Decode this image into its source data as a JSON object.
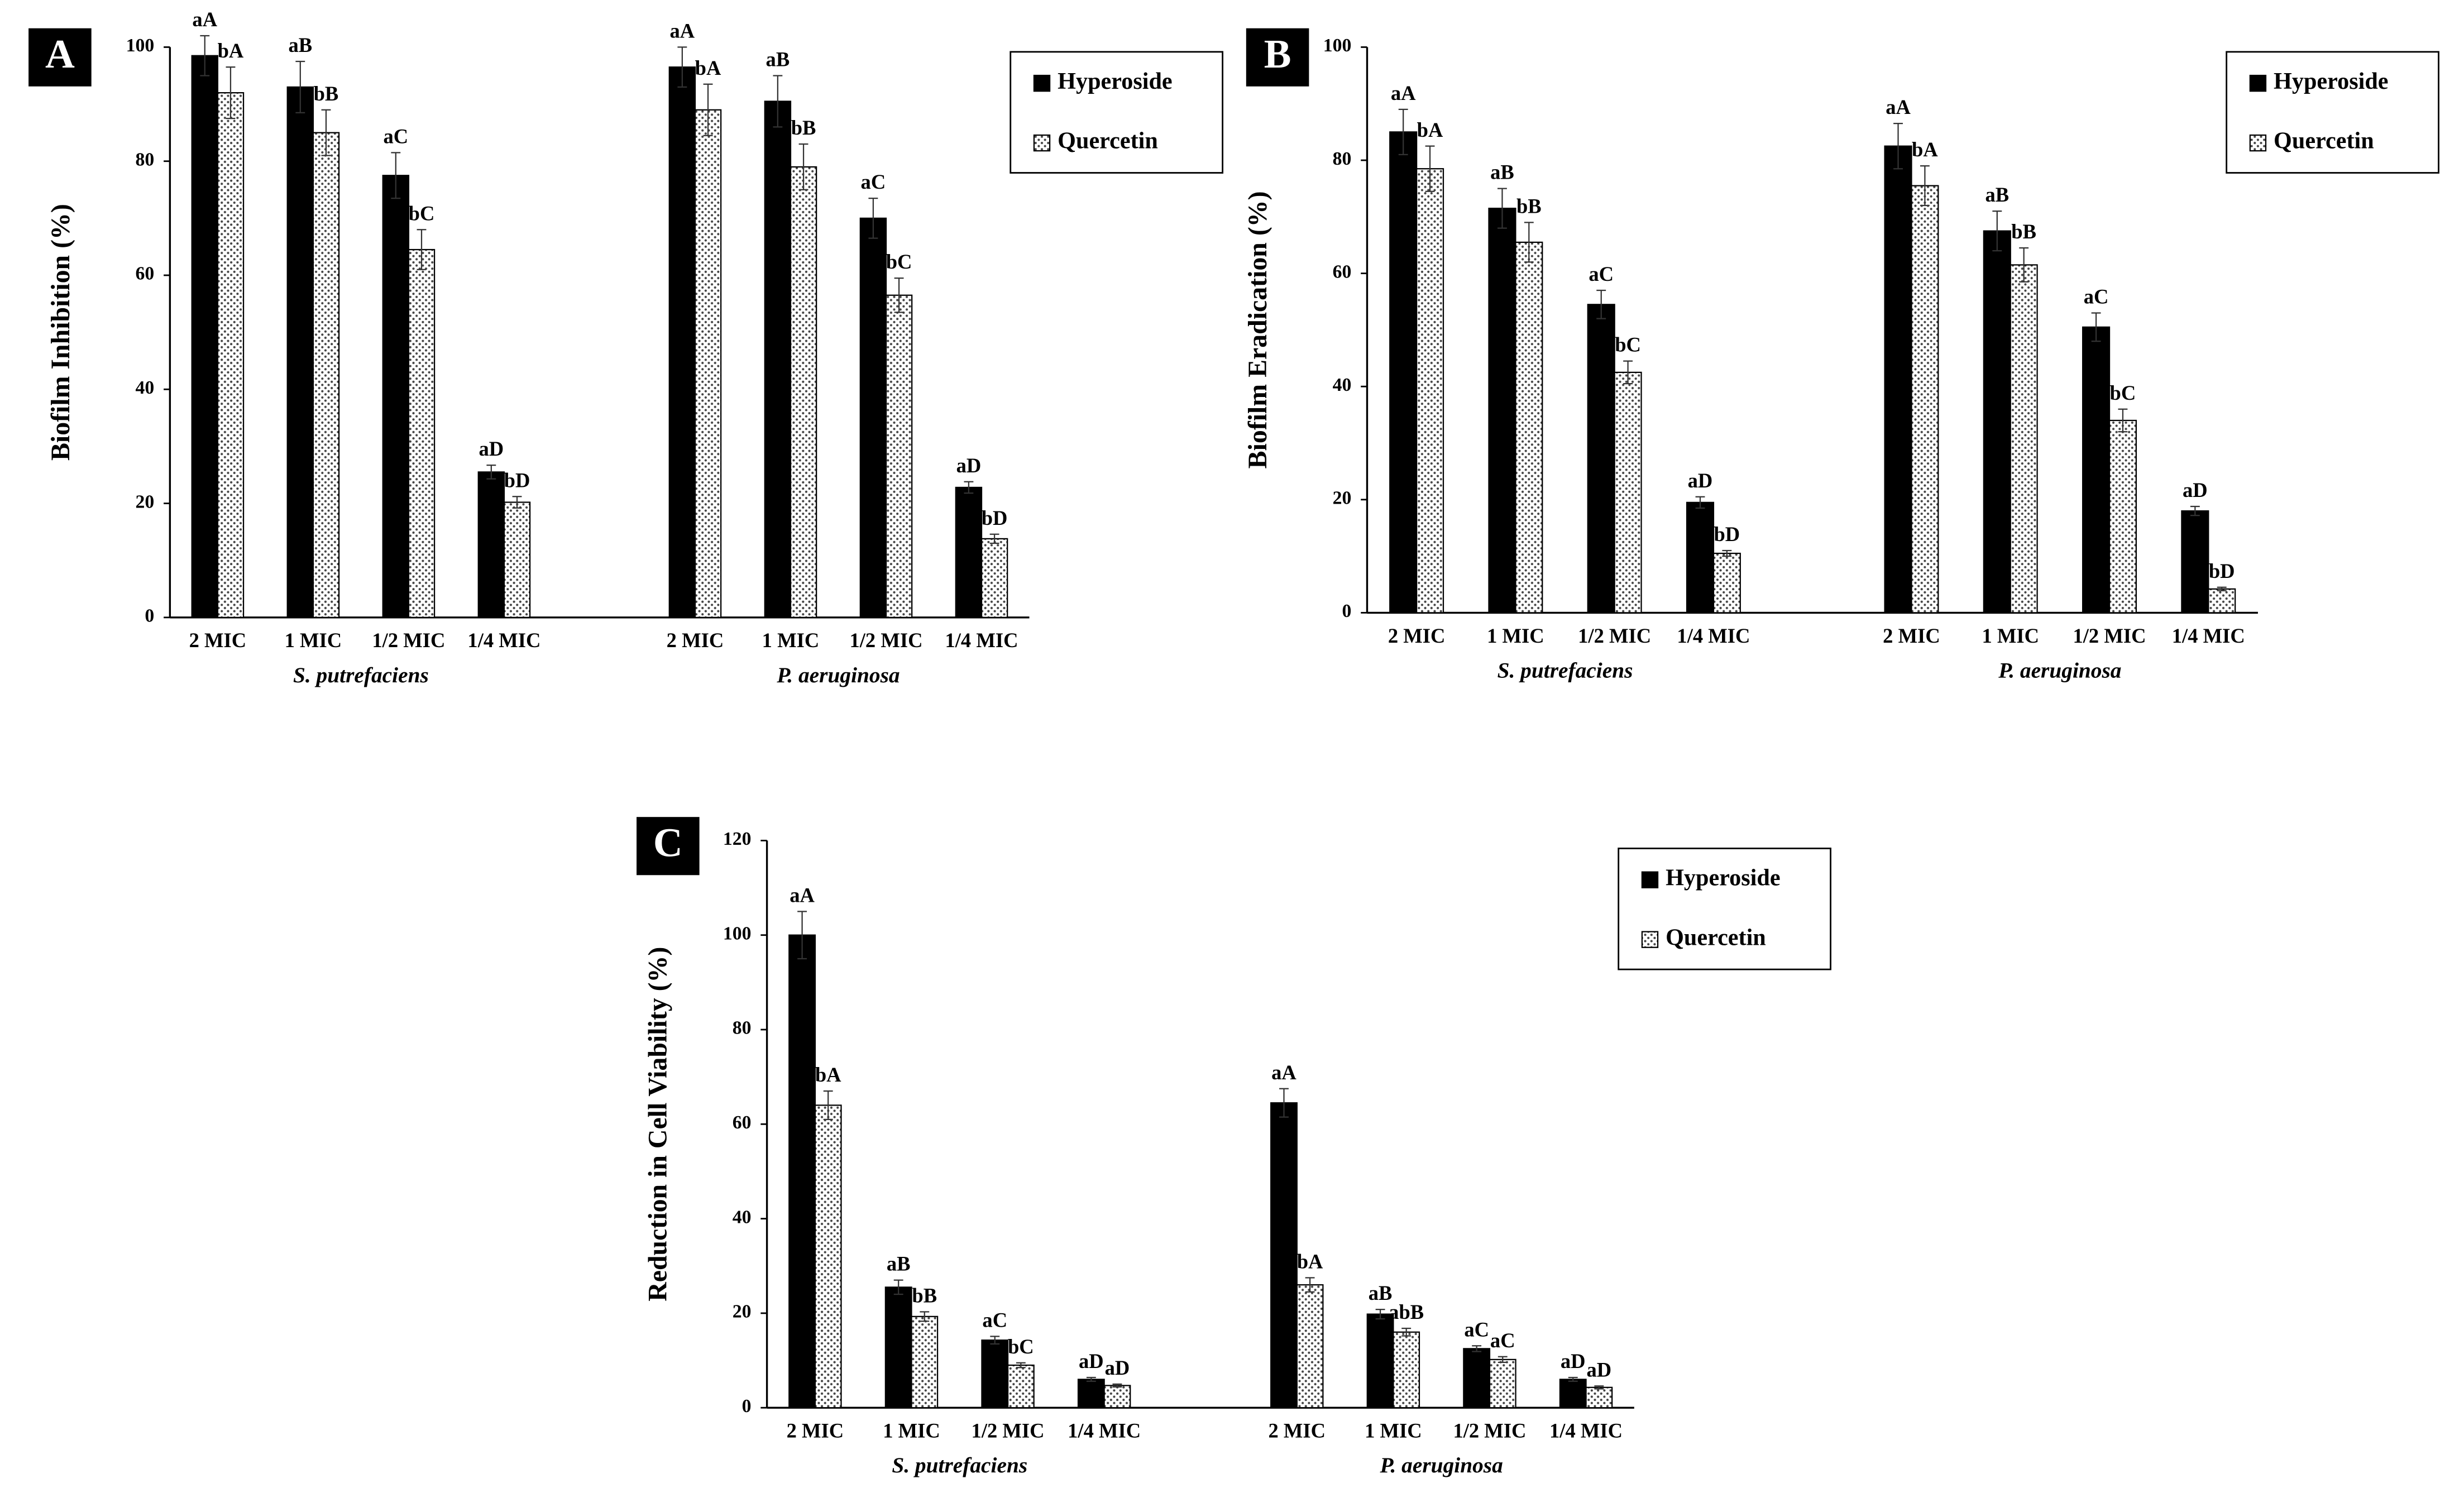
{
  "chart_data": [
    {
      "type": "bar",
      "panel_label": "A",
      "y_label": "Biofilm Inhibition (%)",
      "categories": [
        "2 MIC",
        "1 MIC",
        "1/2 MIC",
        "1/4 MIC",
        "2 MIC",
        "1 MIC",
        "1/2 MIC",
        "1/4 MIC"
      ],
      "groups": [
        "S. putrefaciens",
        "P. aeruginosa"
      ],
      "ylim": [
        0,
        100
      ],
      "yticks": [
        0,
        20,
        40,
        60,
        80,
        100
      ],
      "series": [
        {
          "name": "Hyperoside",
          "color": "#000000",
          "values": [
            98.5,
            93,
            77.5,
            25.5,
            96.5,
            90.5,
            70,
            22.8
          ],
          "errors": [
            3.5,
            4.5,
            4,
            1.2,
            3.5,
            4.5,
            3.5,
            1
          ],
          "annotations": [
            "aA",
            "aB",
            "aC",
            "aD",
            "aA",
            "aB",
            "aC",
            "aD"
          ]
        },
        {
          "name": "Quercetin",
          "color": "#ffffff",
          "fill_pattern": "dots",
          "values": [
            92,
            85,
            64.5,
            20.2,
            89,
            79,
            56.5,
            13.8
          ],
          "errors": [
            4.5,
            4,
            3.5,
            1,
            4.5,
            4,
            3,
            0.8
          ],
          "annotations": [
            "bA",
            "bB",
            "bC",
            "bD",
            "bA",
            "bB",
            "bC",
            "bD"
          ]
        }
      ]
    },
    {
      "type": "bar",
      "panel_label": "B",
      "y_label": "Biofilm Eradication (%)",
      "categories": [
        "2 MIC",
        "1 MIC",
        "1/2 MIC",
        "1/4 MIC",
        "2 MIC",
        "1 MIC",
        "1/2 MIC",
        "1/4 MIC"
      ],
      "groups": [
        "S. putrefaciens",
        "P. aeruginosa"
      ],
      "ylim": [
        0,
        100
      ],
      "yticks": [
        0,
        20,
        40,
        60,
        80,
        100
      ],
      "series": [
        {
          "name": "Hyperoside",
          "color": "#000000",
          "values": [
            85,
            71.5,
            54.5,
            19.5,
            82.5,
            67.5,
            50.5,
            18
          ],
          "errors": [
            4,
            3.5,
            2.5,
            1,
            4,
            3.5,
            2.5,
            0.8
          ],
          "annotations": [
            "aA",
            "aB",
            "aC",
            "aD",
            "aA",
            "aB",
            "aC",
            "aD"
          ]
        },
        {
          "name": "Quercetin",
          "color": "#ffffff",
          "fill_pattern": "dots",
          "values": [
            78.5,
            65.5,
            42.5,
            10.5,
            75.5,
            61.5,
            34,
            4.2
          ],
          "errors": [
            4,
            3.5,
            2,
            0.5,
            3.5,
            3,
            2,
            0.3
          ],
          "annotations": [
            "bA",
            "bB",
            "bC",
            "bD",
            "bA",
            "bB",
            "bC",
            "bD"
          ]
        }
      ]
    },
    {
      "type": "bar",
      "panel_label": "C",
      "y_label": "Reduction in Cell Viability (%)",
      "categories": [
        "2 MIC",
        "1 MIC",
        "1/2 MIC",
        "1/4 MIC",
        "2 MIC",
        "1 MIC",
        "1/2 MIC",
        "1/4 MIC"
      ],
      "groups": [
        "S. putrefaciens",
        "P. aeruginosa"
      ],
      "ylim": [
        0,
        120
      ],
      "yticks": [
        0,
        20,
        40,
        60,
        80,
        100,
        120
      ],
      "series": [
        {
          "name": "Hyperoside",
          "color": "#000000",
          "values": [
            100,
            25.5,
            14.3,
            6,
            64.5,
            19.8,
            12.5,
            6
          ],
          "errors": [
            5,
            1.5,
            0.8,
            0.4,
            3,
            1,
            0.6,
            0.4
          ],
          "annotations": [
            "aA",
            "aB",
            "aC",
            "aD",
            "aA",
            "aB",
            "aC",
            "aD"
          ]
        },
        {
          "name": "Quercetin",
          "color": "#ffffff",
          "fill_pattern": "dots",
          "values": [
            64,
            19.3,
            9,
            4.7,
            26,
            16,
            10.2,
            4.3
          ],
          "errors": [
            3,
            1,
            0.5,
            0.3,
            1.5,
            0.8,
            0.6,
            0.3
          ],
          "annotations": [
            "bA",
            "bB",
            "bC",
            "aD",
            "bA",
            "abB",
            "aC",
            "aD"
          ]
        }
      ]
    }
  ]
}
